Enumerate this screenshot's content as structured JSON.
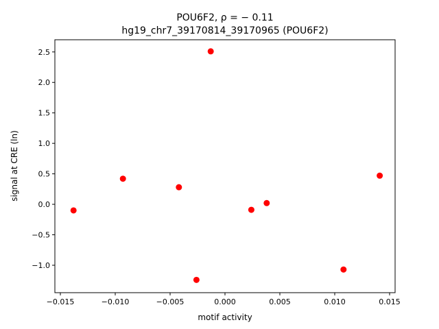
{
  "chart_data": {
    "type": "scatter",
    "title_line1": "POU6F2, ρ = − 0.11",
    "title_line2": "hg19_chr7_39170814_39170965 (POU6F2)",
    "xlabel": "motif activity",
    "ylabel": "signal at CRE (ln)",
    "xlim": [
      -0.0155,
      0.0155
    ],
    "ylim": [
      -1.45,
      2.7
    ],
    "xticks": [
      -0.015,
      -0.01,
      -0.005,
      0.0,
      0.005,
      0.01,
      0.015
    ],
    "xtick_labels": [
      "−0.015",
      "−0.010",
      "−0.005",
      "0.000",
      "0.005",
      "0.010",
      "0.015"
    ],
    "yticks": [
      -1.0,
      -0.5,
      0.0,
      0.5,
      1.0,
      1.5,
      2.0,
      2.5
    ],
    "ytick_labels": [
      "−1.0",
      "−0.5",
      "0.0",
      "0.5",
      "1.0",
      "1.5",
      "2.0",
      "2.5"
    ],
    "grid": false,
    "marker_color": "#ff0000",
    "points": [
      {
        "x": -0.0138,
        "y": -0.1
      },
      {
        "x": -0.0093,
        "y": 0.42
      },
      {
        "x": -0.0042,
        "y": 0.28
      },
      {
        "x": -0.0026,
        "y": -1.24
      },
      {
        "x": -0.0013,
        "y": 2.51
      },
      {
        "x": 0.0024,
        "y": -0.09
      },
      {
        "x": 0.0038,
        "y": 0.02
      },
      {
        "x": 0.0108,
        "y": -1.07
      },
      {
        "x": 0.0141,
        "y": 0.47
      }
    ]
  }
}
